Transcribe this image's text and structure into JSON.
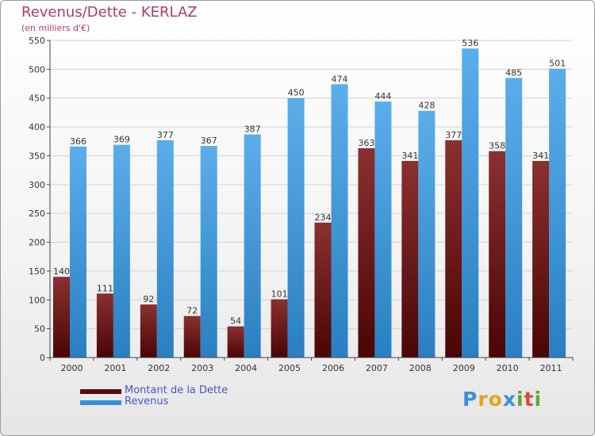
{
  "chart_data": {
    "type": "bar",
    "title": "Revenus/Dette - KERLAZ",
    "subtitle": "(en milliers d'€)",
    "categories": [
      "2000",
      "2001",
      "2002",
      "2003",
      "2004",
      "2005",
      "2006",
      "2007",
      "2008",
      "2009",
      "2010",
      "2011"
    ],
    "series": [
      {
        "name": "Montant de la Dette",
        "color": "#7a1c1c",
        "values": [
          140,
          111,
          92,
          72,
          54,
          101,
          234,
          363,
          341,
          377,
          358,
          341
        ]
      },
      {
        "name": "Revenus",
        "color": "#4ea3e0",
        "values": [
          366,
          369,
          377,
          367,
          387,
          450,
          474,
          444,
          428,
          536,
          485,
          501
        ]
      }
    ],
    "yticks": [
      0,
      50,
      100,
      150,
      200,
      250,
      300,
      350,
      400,
      450,
      500,
      550
    ],
    "ylim": [
      0,
      550
    ],
    "grid": true,
    "legend_position": "bottom-left"
  },
  "logo": {
    "letters": [
      "P",
      "r",
      "o",
      "x",
      "i",
      "t",
      "i"
    ],
    "colors": [
      "#3a8fd8",
      "#e8a020",
      "#e8a020",
      "#3a8fd8",
      "#5aa832",
      "#d94a3a",
      "#5aa832"
    ]
  }
}
